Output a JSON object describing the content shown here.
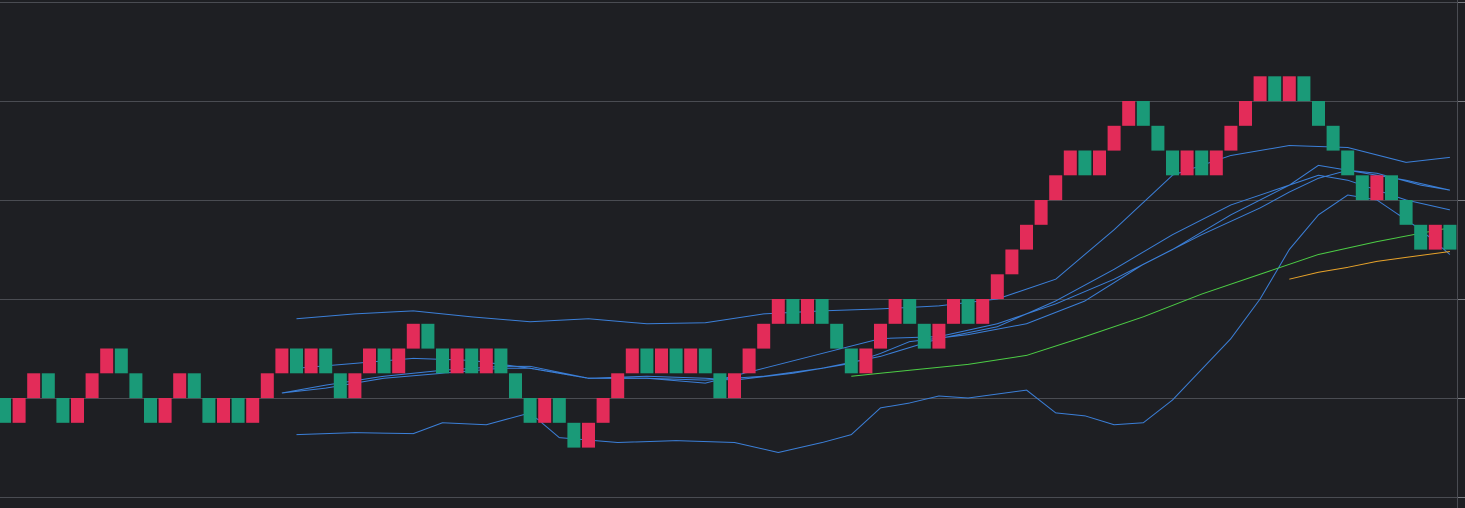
{
  "chart_data": {
    "type": "renko",
    "title": "",
    "xlabel": "",
    "ylabel": "",
    "grid": true,
    "legend": "none",
    "ylim": [
      0,
      5
    ],
    "colors": {
      "background": "#1e1f23",
      "grid": "#4a4c52",
      "up_brick": "#e32c59",
      "down_brick": "#1a9a78",
      "bollinger": "#3b7fd8",
      "ma_green": "#4ccd45",
      "ma_orange": "#e8a32a"
    },
    "bricks": {
      "size": 0.25,
      "columns": [
        {
          "i": 0,
          "low": 0.75,
          "dir": "down"
        },
        {
          "i": 1,
          "low": 0.75,
          "dir": "up"
        },
        {
          "i": 2,
          "low": 1.0,
          "dir": "up"
        },
        {
          "i": 3,
          "low": 1.0,
          "dir": "down"
        },
        {
          "i": 4,
          "low": 0.75,
          "dir": "down"
        },
        {
          "i": 5,
          "low": 0.75,
          "dir": "up"
        },
        {
          "i": 6,
          "low": 1.0,
          "dir": "up"
        },
        {
          "i": 7,
          "low": 1.25,
          "dir": "up"
        },
        {
          "i": 8,
          "low": 1.25,
          "dir": "down"
        },
        {
          "i": 9,
          "low": 1.0,
          "dir": "down"
        },
        {
          "i": 10,
          "low": 0.75,
          "dir": "down"
        },
        {
          "i": 11,
          "low": 0.75,
          "dir": "up"
        },
        {
          "i": 12,
          "low": 1.0,
          "dir": "up"
        },
        {
          "i": 13,
          "low": 1.0,
          "dir": "down"
        },
        {
          "i": 14,
          "low": 0.75,
          "dir": "down"
        },
        {
          "i": 15,
          "low": 0.75,
          "dir": "up"
        },
        {
          "i": 16,
          "low": 0.75,
          "dir": "down"
        },
        {
          "i": 17,
          "low": 0.75,
          "dir": "up"
        },
        {
          "i": 18,
          "low": 1.0,
          "dir": "up"
        },
        {
          "i": 19,
          "low": 1.25,
          "dir": "up"
        },
        {
          "i": 20,
          "low": 1.25,
          "dir": "down"
        },
        {
          "i": 21,
          "low": 1.25,
          "dir": "up"
        },
        {
          "i": 22,
          "low": 1.25,
          "dir": "down"
        },
        {
          "i": 23,
          "low": 1.0,
          "dir": "down"
        },
        {
          "i": 24,
          "low": 1.0,
          "dir": "up"
        },
        {
          "i": 25,
          "low": 1.25,
          "dir": "up"
        },
        {
          "i": 26,
          "low": 1.25,
          "dir": "down"
        },
        {
          "i": 27,
          "low": 1.25,
          "dir": "up"
        },
        {
          "i": 28,
          "low": 1.5,
          "dir": "up"
        },
        {
          "i": 29,
          "low": 1.5,
          "dir": "down"
        },
        {
          "i": 30,
          "low": 1.25,
          "dir": "down"
        },
        {
          "i": 31,
          "low": 1.25,
          "dir": "up"
        },
        {
          "i": 32,
          "low": 1.25,
          "dir": "down"
        },
        {
          "i": 33,
          "low": 1.25,
          "dir": "up"
        },
        {
          "i": 34,
          "low": 1.25,
          "dir": "down"
        },
        {
          "i": 35,
          "low": 1.0,
          "dir": "down"
        },
        {
          "i": 36,
          "low": 0.75,
          "dir": "down"
        },
        {
          "i": 37,
          "low": 0.75,
          "dir": "up"
        },
        {
          "i": 38,
          "low": 0.75,
          "dir": "down"
        },
        {
          "i": 39,
          "low": 0.5,
          "dir": "down"
        },
        {
          "i": 40,
          "low": 0.5,
          "dir": "up"
        },
        {
          "i": 41,
          "low": 0.75,
          "dir": "up"
        },
        {
          "i": 42,
          "low": 1.0,
          "dir": "up"
        },
        {
          "i": 43,
          "low": 1.25,
          "dir": "up"
        },
        {
          "i": 44,
          "low": 1.25,
          "dir": "down"
        },
        {
          "i": 45,
          "low": 1.25,
          "dir": "up"
        },
        {
          "i": 46,
          "low": 1.25,
          "dir": "down"
        },
        {
          "i": 47,
          "low": 1.25,
          "dir": "up"
        },
        {
          "i": 48,
          "low": 1.25,
          "dir": "down"
        },
        {
          "i": 49,
          "low": 1.0,
          "dir": "down"
        },
        {
          "i": 50,
          "low": 1.0,
          "dir": "up"
        },
        {
          "i": 51,
          "low": 1.25,
          "dir": "up"
        },
        {
          "i": 52,
          "low": 1.5,
          "dir": "up"
        },
        {
          "i": 53,
          "low": 1.75,
          "dir": "up"
        },
        {
          "i": 54,
          "low": 1.75,
          "dir": "down"
        },
        {
          "i": 55,
          "low": 1.75,
          "dir": "up"
        },
        {
          "i": 56,
          "low": 1.75,
          "dir": "down"
        },
        {
          "i": 57,
          "low": 1.5,
          "dir": "down"
        },
        {
          "i": 58,
          "low": 1.25,
          "dir": "down"
        },
        {
          "i": 59,
          "low": 1.25,
          "dir": "up"
        },
        {
          "i": 60,
          "low": 1.5,
          "dir": "up"
        },
        {
          "i": 61,
          "low": 1.75,
          "dir": "up"
        },
        {
          "i": 62,
          "low": 1.75,
          "dir": "down"
        },
        {
          "i": 63,
          "low": 1.5,
          "dir": "down"
        },
        {
          "i": 64,
          "low": 1.5,
          "dir": "up"
        },
        {
          "i": 65,
          "low": 1.75,
          "dir": "up"
        },
        {
          "i": 66,
          "low": 1.75,
          "dir": "down"
        },
        {
          "i": 67,
          "low": 1.75,
          "dir": "up"
        },
        {
          "i": 68,
          "low": 2.0,
          "dir": "up"
        },
        {
          "i": 69,
          "low": 2.25,
          "dir": "up"
        },
        {
          "i": 70,
          "low": 2.5,
          "dir": "up"
        },
        {
          "i": 71,
          "low": 2.75,
          "dir": "up"
        },
        {
          "i": 72,
          "low": 3.0,
          "dir": "up"
        },
        {
          "i": 73,
          "low": 3.25,
          "dir": "up"
        },
        {
          "i": 74,
          "low": 3.25,
          "dir": "down"
        },
        {
          "i": 75,
          "low": 3.25,
          "dir": "up"
        },
        {
          "i": 76,
          "low": 3.5,
          "dir": "up"
        },
        {
          "i": 77,
          "low": 3.75,
          "dir": "up"
        },
        {
          "i": 78,
          "low": 3.75,
          "dir": "down"
        },
        {
          "i": 79,
          "low": 3.5,
          "dir": "down"
        },
        {
          "i": 80,
          "low": 3.25,
          "dir": "down"
        },
        {
          "i": 81,
          "low": 3.25,
          "dir": "up"
        },
        {
          "i": 82,
          "low": 3.25,
          "dir": "down"
        },
        {
          "i": 83,
          "low": 3.25,
          "dir": "up"
        },
        {
          "i": 84,
          "low": 3.5,
          "dir": "up"
        },
        {
          "i": 85,
          "low": 3.75,
          "dir": "up"
        },
        {
          "i": 86,
          "low": 4.0,
          "dir": "up"
        },
        {
          "i": 87,
          "low": 4.0,
          "dir": "down"
        },
        {
          "i": 88,
          "low": 4.0,
          "dir": "up"
        },
        {
          "i": 89,
          "low": 4.0,
          "dir": "down"
        },
        {
          "i": 90,
          "low": 3.75,
          "dir": "down"
        },
        {
          "i": 91,
          "low": 3.5,
          "dir": "down"
        },
        {
          "i": 92,
          "low": 3.25,
          "dir": "down"
        },
        {
          "i": 93,
          "low": 3.0,
          "dir": "down"
        },
        {
          "i": 94,
          "low": 3.0,
          "dir": "up"
        },
        {
          "i": 95,
          "low": 3.0,
          "dir": "down"
        },
        {
          "i": 96,
          "low": 2.75,
          "dir": "down"
        },
        {
          "i": 97,
          "low": 2.5,
          "dir": "down"
        },
        {
          "i": 98,
          "low": 2.5,
          "dir": "up"
        },
        {
          "i": 99,
          "low": 2.5,
          "dir": "down"
        }
      ]
    },
    "series": [
      {
        "color": "#3b7fd8",
        "points": [
          [
            20,
            1.8
          ],
          [
            24,
            1.85
          ],
          [
            28,
            1.88
          ],
          [
            32,
            1.82
          ],
          [
            36,
            1.77
          ],
          [
            40,
            1.8
          ],
          [
            44,
            1.75
          ],
          [
            48,
            1.76
          ],
          [
            52,
            1.85
          ],
          [
            56,
            1.88
          ],
          [
            60,
            1.9
          ],
          [
            64,
            1.93
          ],
          [
            68,
            2.0
          ],
          [
            72,
            2.2
          ],
          [
            76,
            2.7
          ],
          [
            80,
            3.25
          ],
          [
            84,
            3.45
          ],
          [
            88,
            3.55
          ],
          [
            92,
            3.53
          ],
          [
            96,
            3.38
          ],
          [
            99,
            3.43
          ]
        ]
      },
      {
        "color": "#3b7fd8",
        "points": [
          [
            20,
            1.3
          ],
          [
            24,
            1.35
          ],
          [
            28,
            1.4
          ],
          [
            32,
            1.38
          ],
          [
            36,
            1.3
          ],
          [
            40,
            1.2
          ],
          [
            44,
            1.2
          ],
          [
            48,
            1.15
          ],
          [
            52,
            1.3
          ],
          [
            56,
            1.45
          ],
          [
            60,
            1.6
          ],
          [
            64,
            1.62
          ],
          [
            68,
            1.75
          ],
          [
            72,
            1.95
          ],
          [
            76,
            2.2
          ],
          [
            80,
            2.5
          ],
          [
            84,
            2.85
          ],
          [
            88,
            3.15
          ],
          [
            90,
            3.35
          ],
          [
            92,
            3.3
          ],
          [
            96,
            3.2
          ],
          [
            99,
            3.1
          ]
        ]
      },
      {
        "color": "#3b7fd8",
        "points": [
          [
            19,
            1.05
          ],
          [
            22,
            1.13
          ],
          [
            26,
            1.22
          ],
          [
            30,
            1.28
          ],
          [
            34,
            1.32
          ],
          [
            36,
            1.32
          ],
          [
            40,
            1.2
          ],
          [
            44,
            1.22
          ],
          [
            48,
            1.2
          ],
          [
            50,
            1.18
          ],
          [
            54,
            1.25
          ],
          [
            58,
            1.35
          ],
          [
            60,
            1.45
          ],
          [
            62,
            1.57
          ],
          [
            66,
            1.64
          ],
          [
            70,
            1.75
          ],
          [
            74,
            1.98
          ],
          [
            78,
            2.35
          ],
          [
            82,
            2.65
          ],
          [
            86,
            2.92
          ],
          [
            88,
            3.08
          ],
          [
            90,
            3.22
          ],
          [
            92,
            3.3
          ],
          [
            94,
            3.27
          ],
          [
            97,
            3.15
          ],
          [
            99,
            3.1
          ]
        ]
      },
      {
        "color": "#3b7fd8",
        "points": [
          [
            19,
            1.05
          ],
          [
            22,
            1.1
          ],
          [
            26,
            1.2
          ],
          [
            30,
            1.25
          ],
          [
            34,
            1.3
          ],
          [
            36,
            1.3
          ],
          [
            40,
            1.2
          ],
          [
            44,
            1.2
          ],
          [
            48,
            1.18
          ],
          [
            52,
            1.22
          ],
          [
            56,
            1.3
          ],
          [
            60,
            1.42
          ],
          [
            64,
            1.6
          ],
          [
            68,
            1.72
          ],
          [
            72,
            1.98
          ],
          [
            76,
            2.3
          ],
          [
            80,
            2.65
          ],
          [
            84,
            2.95
          ],
          [
            88,
            3.15
          ],
          [
            90,
            3.25
          ],
          [
            92,
            3.2
          ],
          [
            96,
            3.0
          ],
          [
            99,
            2.9
          ]
        ]
      },
      {
        "color": "#3b7fd8",
        "points": [
          [
            20,
            0.63
          ],
          [
            24,
            0.65
          ],
          [
            28,
            0.64
          ],
          [
            30,
            0.75
          ],
          [
            33,
            0.73
          ],
          [
            36,
            0.85
          ],
          [
            38,
            0.6
          ],
          [
            42,
            0.55
          ],
          [
            46,
            0.57
          ],
          [
            50,
            0.55
          ],
          [
            53,
            0.45
          ],
          [
            56,
            0.55
          ],
          [
            58,
            0.63
          ],
          [
            60,
            0.9
          ],
          [
            62,
            0.95
          ],
          [
            64,
            1.02
          ],
          [
            66,
            1.0
          ],
          [
            70,
            1.08
          ],
          [
            72,
            0.85
          ],
          [
            74,
            0.82
          ],
          [
            76,
            0.73
          ],
          [
            78,
            0.75
          ],
          [
            80,
            0.98
          ],
          [
            84,
            1.6
          ],
          [
            86,
            2.0
          ],
          [
            88,
            2.5
          ],
          [
            90,
            2.85
          ],
          [
            92,
            3.05
          ],
          [
            94,
            3.0
          ],
          [
            97,
            2.7
          ],
          [
            99,
            2.45
          ]
        ]
      },
      {
        "color": "#4ccd45",
        "points": [
          [
            58,
            1.22
          ],
          [
            62,
            1.28
          ],
          [
            66,
            1.34
          ],
          [
            70,
            1.43
          ],
          [
            74,
            1.62
          ],
          [
            78,
            1.82
          ],
          [
            82,
            2.05
          ],
          [
            86,
            2.25
          ],
          [
            90,
            2.45
          ],
          [
            94,
            2.58
          ],
          [
            99,
            2.72
          ]
        ]
      },
      {
        "color": "#e8a32a",
        "points": [
          [
            88,
            2.2
          ],
          [
            90,
            2.27
          ],
          [
            92,
            2.32
          ],
          [
            94,
            2.38
          ],
          [
            96,
            2.42
          ],
          [
            99,
            2.48
          ]
        ]
      }
    ]
  }
}
